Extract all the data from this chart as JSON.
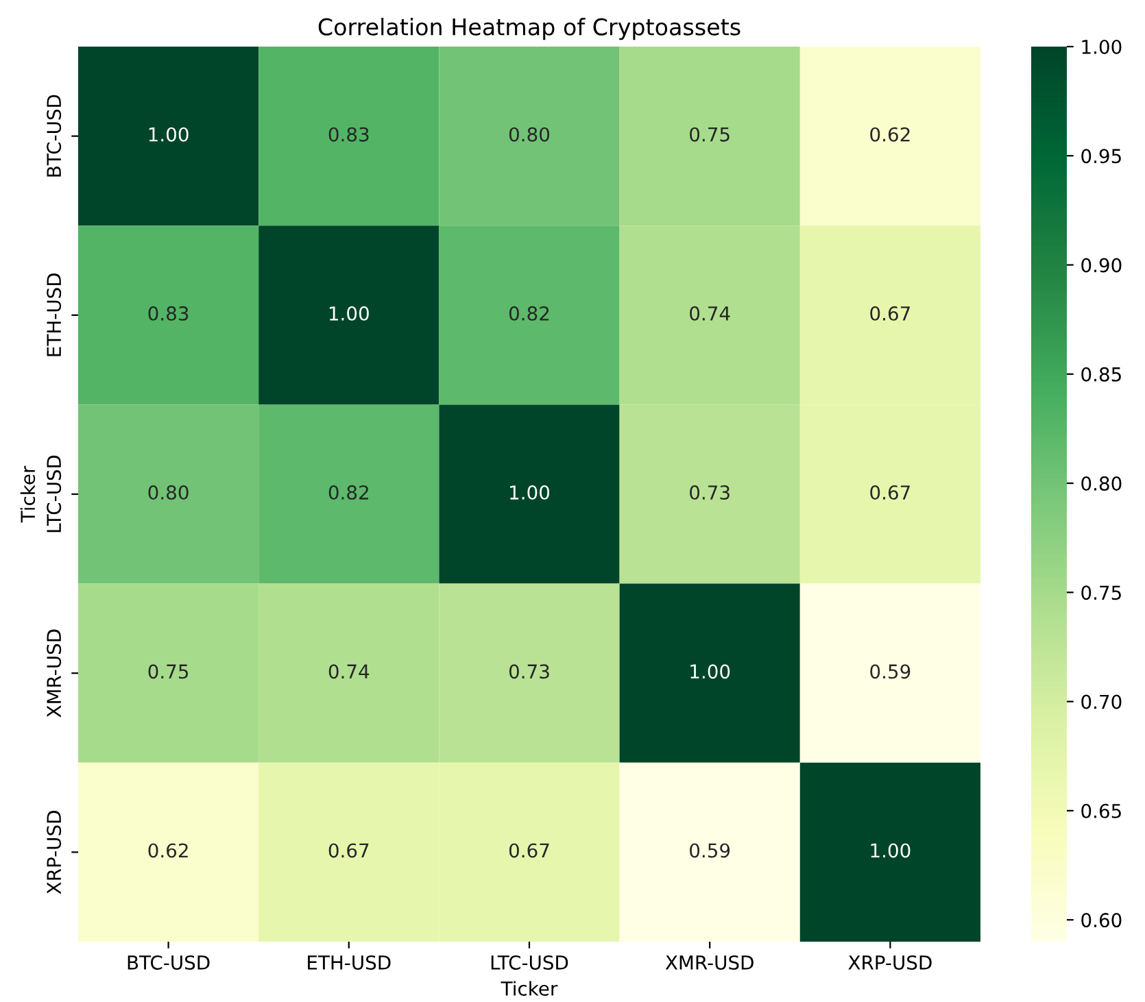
{
  "chart_data": {
    "type": "heatmap",
    "title": "Correlation Heatmap of Cryptoassets",
    "xlabel": "Ticker",
    "ylabel": "Ticker",
    "categories": [
      "BTC-USD",
      "ETH-USD",
      "LTC-USD",
      "XMR-USD",
      "XRP-USD"
    ],
    "y_categories": [
      "BTC-USD",
      "ETH-USD",
      "LTC-USD",
      "XMR-USD",
      "XRP-USD"
    ],
    "cells": [
      [
        1.0,
        0.83,
        0.8,
        0.75,
        0.62
      ],
      [
        0.83,
        1.0,
        0.82,
        0.74,
        0.67
      ],
      [
        0.8,
        0.82,
        1.0,
        0.73,
        0.67
      ],
      [
        0.75,
        0.74,
        0.73,
        1.0,
        0.59
      ],
      [
        0.62,
        0.67,
        0.67,
        0.59,
        1.0
      ]
    ],
    "cell_labels": [
      [
        "1.00",
        "0.83",
        "0.80",
        "0.75",
        "0.62"
      ],
      [
        "0.83",
        "1.00",
        "0.82",
        "0.74",
        "0.67"
      ],
      [
        "0.80",
        "0.82",
        "1.00",
        "0.73",
        "0.67"
      ],
      [
        "0.75",
        "0.74",
        "0.73",
        "1.00",
        "0.59"
      ],
      [
        "0.62",
        "0.67",
        "0.67",
        "0.59",
        "1.00"
      ]
    ],
    "cticks": [
      "0.60",
      "0.65",
      "0.70",
      "0.75",
      "0.80",
      "0.85",
      "0.90",
      "0.95",
      "1.00"
    ]
  }
}
